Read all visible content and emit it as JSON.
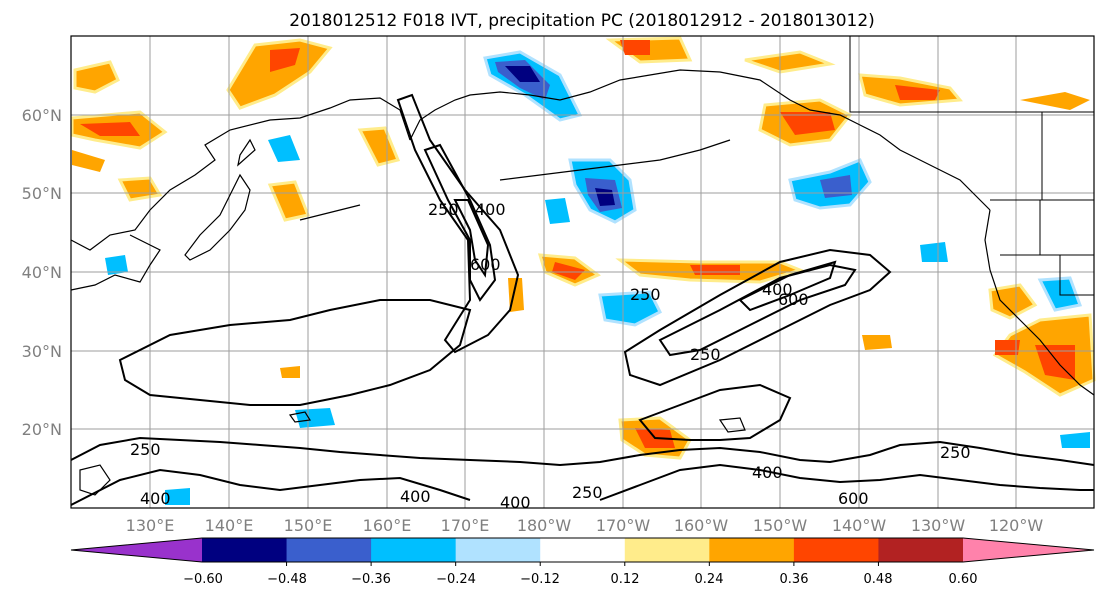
{
  "title": "2018012512 F018 IVT, precipitation PC (2018012912 - 2018013012)",
  "map": {
    "lon_range": [
      120,
      250
    ],
    "lat_range": [
      10,
      70
    ],
    "lon_ticks": [
      "130°E",
      "140°E",
      "150°E",
      "160°E",
      "170°E",
      "180°W",
      "170°W",
      "160°W",
      "150°W",
      "140°W",
      "130°W",
      "120°W"
    ],
    "lat_ticks": [
      "20°N",
      "30°N",
      "40°N",
      "50°N",
      "60°N"
    ],
    "gridlines": true
  },
  "contour_labels": [
    "250",
    "400",
    "600"
  ],
  "colorbar": {
    "ticks": [
      "−0.60",
      "−0.48",
      "−0.36",
      "−0.24",
      "−0.12",
      "0.12",
      "0.24",
      "0.36",
      "0.48",
      "0.60"
    ],
    "colors": [
      "#9932cc",
      "#000080",
      "#3a5fcd",
      "#00bfff",
      "#b0e2ff",
      "#ffffff",
      "#ffec8b",
      "#ffa500",
      "#ff4500",
      "#b22222",
      "#ff82ab"
    ],
    "extend": "both"
  }
}
